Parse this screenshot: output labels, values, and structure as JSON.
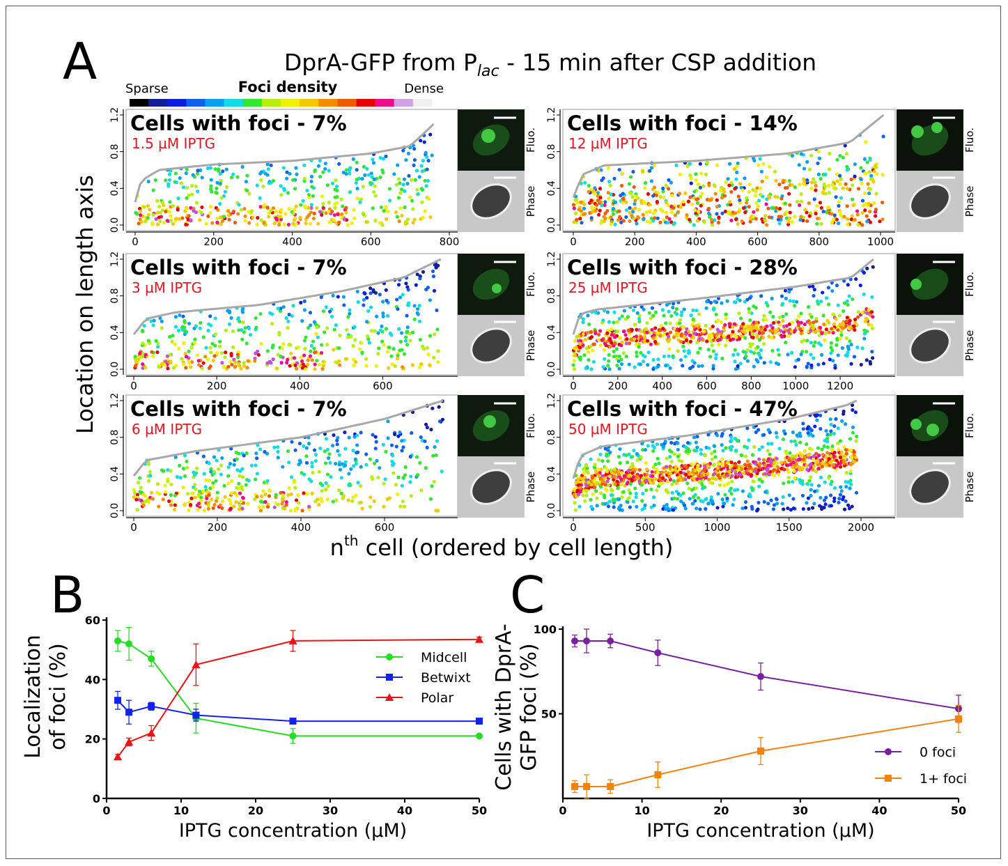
{
  "panel_letters": {
    "a": "A",
    "b": "B",
    "c": "C"
  },
  "panel_a": {
    "title_main": "DprA-GFP from P",
    "title_sub": "lac",
    "title_rest": " - 15 min after CSP addition",
    "scale": {
      "label_left": "Sparse",
      "label_center": "Foci density",
      "label_right": "Dense",
      "colors": [
        "#000000",
        "#111e96",
        "#0a1ee0",
        "#0f5ff0",
        "#08a0f0",
        "#10dce6",
        "#2fe82f",
        "#b4f00a",
        "#f0f000",
        "#f5c800",
        "#f58c00",
        "#f05a00",
        "#e60000",
        "#f00a8c",
        "#d2a0e6",
        "#f0f0f0"
      ]
    },
    "ylabel": "Location on length axis",
    "xlabel_pre": "n",
    "xlabel_sup": "th",
    "xlabel_post": " cell (ordered by cell length)",
    "micrograph_labels": {
      "fluo": "Fluo.",
      "phase": "Phase"
    }
  },
  "chart_data": [
    {
      "type": "scatter",
      "id": "a1",
      "foci_label": "Cells with foci - 7%",
      "iptg_label": "1.5 µM IPTG",
      "n": 760,
      "xlim": [
        0,
        800
      ],
      "xticks": [
        0,
        200,
        400,
        600,
        800
      ],
      "ylim": [
        0,
        1.2
      ],
      "yticks": [
        0.0,
        0.4,
        0.8,
        1.2
      ],
      "length_curve": [
        [
          0,
          0.25
        ],
        [
          15,
          0.48
        ],
        [
          60,
          0.6
        ],
        [
          200,
          0.66
        ],
        [
          400,
          0.7
        ],
        [
          600,
          0.78
        ],
        [
          700,
          0.86
        ],
        [
          760,
          1.1
        ]
      ],
      "dense_band": [
        0,
        560,
        0.12,
        0.04
      ],
      "pattern": "pole"
    },
    {
      "type": "scatter",
      "id": "a2",
      "foci_label": "Cells with foci - 14%",
      "iptg_label": "12 µM IPTG",
      "n": 1010,
      "xlim": [
        0,
        1000
      ],
      "xticks": [
        0,
        200,
        400,
        600,
        800,
        1000
      ],
      "ylim": [
        0,
        1.2
      ],
      "yticks": [
        0.0,
        0.4,
        0.8,
        1.2
      ],
      "length_curve": [
        [
          0,
          0.3
        ],
        [
          30,
          0.55
        ],
        [
          100,
          0.65
        ],
        [
          400,
          0.7
        ],
        [
          700,
          0.78
        ],
        [
          900,
          0.9
        ],
        [
          1010,
          1.2
        ]
      ],
      "dense_band": [
        0,
        950,
        0.3,
        0.85
      ],
      "pattern": "mixed"
    },
    {
      "type": "scatter",
      "id": "a3",
      "foci_label": "Cells with foci - 7%",
      "iptg_label": "3 µM IPTG",
      "n": 740,
      "xlim": [
        0,
        700
      ],
      "xticks": [
        0,
        200,
        400,
        600
      ],
      "ylim": [
        0,
        1.2
      ],
      "yticks": [
        0.0,
        0.4,
        0.8,
        1.2
      ],
      "length_curve": [
        [
          0,
          0.38
        ],
        [
          30,
          0.55
        ],
        [
          100,
          0.62
        ],
        [
          300,
          0.7
        ],
        [
          500,
          0.85
        ],
        [
          650,
          1.0
        ],
        [
          740,
          1.2
        ]
      ],
      "dense_band": [
        0,
        460,
        0.12,
        0.1
      ],
      "pattern": "pole"
    },
    {
      "type": "scatter",
      "id": "a4",
      "foci_label": "Cells with foci - 28%",
      "iptg_label": "25 µM IPTG",
      "n": 1350,
      "xlim": [
        0,
        1300
      ],
      "xticks": [
        0,
        200,
        400,
        600,
        800,
        1000,
        1200
      ],
      "ylim": [
        0,
        1.2
      ],
      "yticks": [
        0.0,
        0.4,
        0.8,
        1.2
      ],
      "length_curve": [
        [
          0,
          0.38
        ],
        [
          30,
          0.6
        ],
        [
          100,
          0.65
        ],
        [
          600,
          0.78
        ],
        [
          1000,
          0.9
        ],
        [
          1250,
          1.0
        ],
        [
          1350,
          1.2
        ]
      ],
      "dense_band": [
        0,
        1350,
        0.4,
        0.95
      ],
      "pattern": "midcell"
    },
    {
      "type": "scatter",
      "id": "a5",
      "foci_label": "Cells with foci - 7%",
      "iptg_label": "6 µM IPTG",
      "n": 740,
      "xlim": [
        0,
        700
      ],
      "xticks": [
        0,
        200,
        400,
        600
      ],
      "ylim": [
        0,
        1.2
      ],
      "yticks": [
        0.0,
        0.4,
        0.8,
        1.2
      ],
      "length_curve": [
        [
          0,
          0.38
        ],
        [
          30,
          0.55
        ],
        [
          150,
          0.65
        ],
        [
          400,
          0.8
        ],
        [
          600,
          1.0
        ],
        [
          740,
          1.2
        ]
      ],
      "dense_band": [
        0,
        430,
        0.07,
        0.05
      ],
      "pattern": "pole"
    },
    {
      "type": "scatter",
      "id": "a6",
      "foci_label": "Cells with foci - 47%",
      "iptg_label": "50 µM IPTG",
      "n": 1970,
      "xlim": [
        0,
        2000
      ],
      "xticks": [
        0,
        500,
        1000,
        1500,
        2000
      ],
      "ylim": [
        0,
        1.2
      ],
      "yticks": [
        0.0,
        0.4,
        0.8,
        1.2
      ],
      "length_curve": [
        [
          0,
          0.35
        ],
        [
          50,
          0.6
        ],
        [
          200,
          0.7
        ],
        [
          800,
          0.82
        ],
        [
          1500,
          1.0
        ],
        [
          1900,
          1.15
        ],
        [
          1970,
          1.2
        ]
      ],
      "dense_band": [
        0,
        1970,
        0.45,
        1.0
      ],
      "pattern": "midcell"
    },
    {
      "type": "line",
      "id": "b",
      "xlabel": "IPTG concentration (µM)",
      "ylabel_line1": "Localization",
      "ylabel_line2": "of foci (%)",
      "xlim": [
        0,
        50
      ],
      "ylim": [
        0,
        60
      ],
      "xticks": [
        0,
        10,
        20,
        30,
        40,
        50
      ],
      "yticks": [
        0,
        20,
        40,
        60
      ],
      "x": [
        1.5,
        3,
        6,
        12,
        25,
        50
      ],
      "series": [
        {
          "name": "Midcell",
          "color": "#22dd22",
          "marker": "circle",
          "values": [
            53,
            52,
            47,
            27,
            21,
            21
          ],
          "err": [
            3.5,
            5.5,
            2.5,
            5,
            2.5,
            0
          ]
        },
        {
          "name": "Betwixt",
          "color": "#1122ee",
          "marker": "square",
          "values": [
            33,
            29,
            31,
            28,
            26,
            26
          ],
          "err": [
            3,
            4,
            1.3,
            2,
            0.5,
            0
          ]
        },
        {
          "name": "Polar",
          "color": "#ee1111",
          "marker": "triangle",
          "values": [
            14,
            19,
            22,
            45,
            53,
            53.5
          ],
          "err": [
            0.8,
            1.3,
            2.5,
            7,
            3.5,
            0.8
          ]
        }
      ]
    },
    {
      "type": "line",
      "id": "c",
      "xlabel": "IPTG concentration (µM)",
      "ylabel_line1": "Cells with DprA-",
      "ylabel_line2": "GFP foci (%)",
      "xlim": [
        0,
        50
      ],
      "ylim": [
        0,
        100
      ],
      "xticks": [
        0,
        10,
        20,
        30,
        40,
        50
      ],
      "yticks": [
        50,
        100
      ],
      "x": [
        1.5,
        3,
        6,
        12,
        25,
        50
      ],
      "series": [
        {
          "name": "0 foci",
          "color": "#7a1fa0",
          "marker": "circle",
          "values": [
            93,
            93,
            93,
            86,
            72,
            53
          ],
          "err": [
            3.5,
            7,
            4,
            7.5,
            8,
            8
          ]
        },
        {
          "name": "1+ foci",
          "color": "#f5820a",
          "marker": "square",
          "values": [
            7,
            7,
            7,
            14,
            28,
            47
          ],
          "err": [
            3.5,
            7,
            4,
            7.5,
            8,
            8
          ]
        }
      ]
    }
  ]
}
